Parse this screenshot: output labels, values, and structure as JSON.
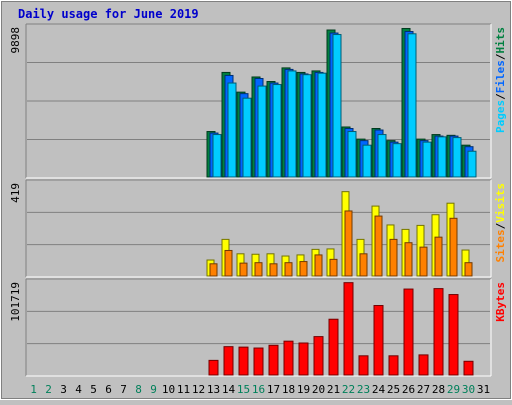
{
  "chart_data": [
    {
      "type": "bar",
      "title": "Daily usage for June 2019",
      "categories": [
        "1",
        "2",
        "3",
        "4",
        "5",
        "6",
        "7",
        "8",
        "9",
        "10",
        "11",
        "12",
        "13",
        "14",
        "15",
        "16",
        "17",
        "18",
        "19",
        "20",
        "21",
        "22",
        "23",
        "24",
        "25",
        "26",
        "27",
        "28",
        "29",
        "30",
        "31"
      ],
      "weekend_days": [
        "1",
        "2",
        "8",
        "9",
        "15",
        "16",
        "22",
        "23",
        "29",
        "30"
      ],
      "ylim": [
        0,
        9898
      ],
      "max_label": "9898",
      "legend": [
        {
          "label": "Pages",
          "color": "#00ccff"
        },
        {
          "sep": "/"
        },
        {
          "label": "Files",
          "color": "#0066ff"
        },
        {
          "sep": "/"
        },
        {
          "label": "Hits",
          "color": "#008040"
        }
      ],
      "series": [
        {
          "name": "Hits",
          "color": "#008040",
          "values": [
            0,
            0,
            0,
            0,
            0,
            0,
            0,
            0,
            0,
            0,
            0,
            0,
            3000,
            6900,
            5600,
            6600,
            6300,
            7200,
            6900,
            7000,
            9700,
            3300,
            2500,
            3200,
            2400,
            9800,
            2500,
            2800,
            2750,
            2100,
            0
          ]
        },
        {
          "name": "Files",
          "color": "#0066ff",
          "values": [
            0,
            0,
            0,
            0,
            0,
            0,
            0,
            0,
            0,
            0,
            0,
            0,
            2900,
            6700,
            5500,
            6500,
            6200,
            7100,
            6800,
            6900,
            9500,
            3200,
            2400,
            3100,
            2300,
            9600,
            2400,
            2700,
            2700,
            2000,
            0
          ]
        },
        {
          "name": "Pages",
          "color": "#00ccff",
          "values": [
            0,
            0,
            0,
            0,
            0,
            0,
            0,
            0,
            0,
            0,
            0,
            0,
            2800,
            6200,
            5200,
            6000,
            6100,
            7000,
            6750,
            6850,
            9400,
            3000,
            2100,
            2800,
            2200,
            9450,
            2300,
            2650,
            2600,
            1700,
            0
          ]
        }
      ]
    },
    {
      "type": "bar",
      "categories": [
        "1",
        "2",
        "3",
        "4",
        "5",
        "6",
        "7",
        "8",
        "9",
        "10",
        "11",
        "12",
        "13",
        "14",
        "15",
        "16",
        "17",
        "18",
        "19",
        "20",
        "21",
        "22",
        "23",
        "24",
        "25",
        "26",
        "27",
        "28",
        "29",
        "30",
        "31"
      ],
      "ylim": [
        0,
        419
      ],
      "max_label": "419",
      "legend": [
        {
          "label": "Sites",
          "color": "#ff8000"
        },
        {
          "sep": "/"
        },
        {
          "label": "Visits",
          "color": "#ffff00"
        }
      ],
      "series": [
        {
          "name": "Visits",
          "color": "#ffff00",
          "values": [
            0,
            0,
            0,
            0,
            0,
            0,
            0,
            0,
            0,
            0,
            0,
            0,
            72,
            165,
            100,
            98,
            100,
            90,
            95,
            120,
            122,
            380,
            165,
            315,
            230,
            210,
            228,
            276,
            328,
            117,
            0
          ]
        },
        {
          "name": "Sites",
          "color": "#ff8000",
          "values": [
            0,
            0,
            0,
            0,
            0,
            0,
            0,
            0,
            0,
            0,
            0,
            0,
            55,
            115,
            58,
            60,
            55,
            60,
            65,
            95,
            75,
            293,
            100,
            270,
            165,
            150,
            130,
            175,
            260,
            60,
            0
          ]
        }
      ]
    },
    {
      "type": "bar",
      "categories": [
        "1",
        "2",
        "3",
        "4",
        "5",
        "6",
        "7",
        "8",
        "9",
        "10",
        "11",
        "12",
        "13",
        "14",
        "15",
        "16",
        "17",
        "18",
        "19",
        "20",
        "21",
        "22",
        "23",
        "24",
        "25",
        "26",
        "27",
        "28",
        "29",
        "30",
        "31"
      ],
      "ylim": [
        0,
        101719
      ],
      "max_label": "101719",
      "legend": [
        {
          "label": "KBytes",
          "color": "#ff0000"
        }
      ],
      "series": [
        {
          "name": "KBytes",
          "color": "#ff0000",
          "values": [
            0,
            0,
            0,
            0,
            0,
            0,
            0,
            0,
            0,
            0,
            0,
            0,
            16000,
            31000,
            30500,
            29500,
            32500,
            37000,
            35000,
            42000,
            61000,
            101000,
            21000,
            76000,
            21000,
            94000,
            22000,
            94500,
            88000,
            15000,
            0
          ]
        }
      ]
    }
  ]
}
